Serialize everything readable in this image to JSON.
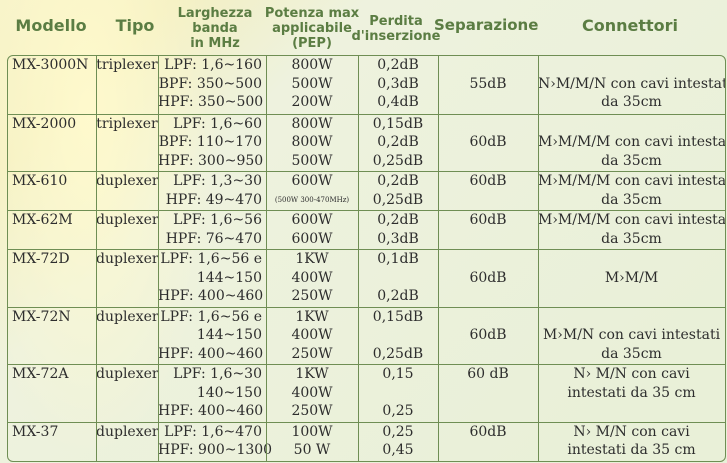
{
  "headers": {
    "modello": "Modello",
    "tipo": "Tipo",
    "larghezza": [
      "Larghezza",
      "banda",
      "in MHz"
    ],
    "potenza": [
      "Potenza max",
      "applicabile",
      "(PEP)"
    ],
    "perdita": [
      "Perdita",
      "d'inserzione"
    ],
    "separazione": "Separazione",
    "connettori": "Connettori"
  },
  "rows": [
    {
      "modello": "MX-3000N",
      "tipo": "triplexer",
      "bande": [
        "LPF: 1,6~160",
        "BPF: 350~500",
        "HPF: 350~500"
      ],
      "potenza": [
        "800W",
        "500W",
        "200W"
      ],
      "perdita": [
        "0,2dB",
        "0,3dB",
        "0,4dB"
      ],
      "separazione": [
        "",
        "55dB",
        ""
      ],
      "connettori": [
        "",
        "N›M/M/N con cavi intestati",
        "da 35cm"
      ]
    },
    {
      "modello": "MX-2000",
      "tipo": "triplexer",
      "bande": [
        "LPF: 1,6~60",
        "BPF: 110~170",
        "HPF: 300~950"
      ],
      "potenza": [
        "800W",
        "800W",
        "500W"
      ],
      "perdita": [
        "0,15dB",
        "0,2dB",
        "0,25dB"
      ],
      "separazione": [
        "",
        "60dB",
        ""
      ],
      "connettori": [
        "",
        "M›M/M/M con cavi intestati",
        "da 35cm"
      ]
    },
    {
      "modello": "MX-610",
      "tipo": "duplexer",
      "bande": [
        "LPF: 1,3~30",
        "HPF: 49~470"
      ],
      "potenza": [
        "600W",
        "(500W 300-470MHz)"
      ],
      "perdita": [
        "0,2dB",
        "0,25dB"
      ],
      "separazione": [
        "60dB",
        ""
      ],
      "connettori": [
        "M›M/M/M con cavi intestati",
        "da 35cm"
      ]
    },
    {
      "modello": "MX-62M",
      "tipo": "duplexer",
      "bande": [
        "LPF: 1,6~56",
        "HPF: 76~470"
      ],
      "potenza": [
        "600W",
        "600W"
      ],
      "perdita": [
        "0,2dB",
        "0,3dB"
      ],
      "separazione": [
        "60dB",
        ""
      ],
      "connettori": [
        "M›M/M/M con cavi intestati",
        "da 35cm"
      ]
    },
    {
      "modello": "MX-72D",
      "tipo": "duplexer",
      "bande": [
        "LPF: 1,6~56 e",
        "144~150",
        "HPF: 400~460"
      ],
      "potenza": [
        "1KW",
        "400W",
        "250W"
      ],
      "perdita": [
        "0,1dB",
        "",
        "0,2dB"
      ],
      "separazione": [
        "",
        "60dB",
        ""
      ],
      "connettori": [
        "",
        "M›M/M",
        ""
      ]
    },
    {
      "modello": "MX-72N",
      "tipo": "duplexer",
      "bande": [
        "LPF: 1,6~56 e",
        "144~150",
        "HPF: 400~460"
      ],
      "potenza": [
        "1KW",
        "400W",
        "250W"
      ],
      "perdita": [
        "0,15dB",
        "",
        "0,25dB"
      ],
      "separazione": [
        "",
        "60dB",
        ""
      ],
      "connettori": [
        "",
        "M›M/N con cavi intestati",
        "da 35cm"
      ]
    },
    {
      "modello": "MX-72A",
      "tipo": "duplexer",
      "bande": [
        "LPF: 1,6~30",
        "140~150",
        "HPF: 400~460"
      ],
      "potenza": [
        "1KW",
        "400W",
        "250W"
      ],
      "perdita": [
        "0,15",
        "",
        "0,25"
      ],
      "separazione": [
        "60 dB",
        "",
        ""
      ],
      "connettori": [
        "N› M/N con cavi",
        "intestati da 35 cm",
        ""
      ]
    },
    {
      "modello": "MX-37",
      "tipo": "duplexer",
      "bande": [
        "LPF: 1,6~470",
        "HPF: 900~1300"
      ],
      "potenza": [
        "100W",
        "50 W"
      ],
      "perdita": [
        "0,25",
        "0,45"
      ],
      "separazione": [
        "60dB",
        ""
      ],
      "connettori": [
        "N› M/N con cavi",
        "intestati da 35 cm"
      ]
    }
  ]
}
